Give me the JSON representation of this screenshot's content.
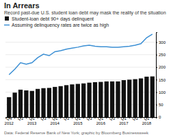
{
  "chart_data": {
    "type": "bar",
    "title": "In Arrears",
    "subtitle": "Record past-due U.S. student loan debt may mask the reality of the situation",
    "footer": "Data: Federal Reserve Bank of New York; graphic by Bloomberg Businessweek",
    "categories": [
      "Q4\n2012",
      null,
      "Q3",
      null,
      "Q1\n2013",
      null,
      "Q3",
      null,
      "Q1\n2014",
      null,
      "Q3",
      null,
      "Q1\n2015",
      null,
      "Q3",
      null,
      "Q1\n2016",
      null,
      "Q3",
      null,
      "Q1\n2017",
      null,
      "Q3",
      null,
      "Q1\n2018",
      null
    ],
    "series": [
      {
        "name": "Student-loan debt 90+ days delinquent",
        "type": "bar",
        "color": "#111111",
        "values": [
          80,
          98,
          110,
          107,
          105,
          113,
          116,
          117,
          121,
          124,
          128,
          131,
          133,
          135,
          138,
          140,
          141,
          143,
          143,
          143,
          148,
          150,
          152,
          155,
          162,
          163
        ]
      },
      {
        "name": "Assuming delinquency rates are twice as high",
        "type": "line",
        "color": "#3b8fd4",
        "values": [
          170,
          192,
          218,
          212,
          218,
          238,
          252,
          246,
          262,
          266,
          272,
          276,
          280,
          285,
          288,
          284,
          282,
          282,
          280,
          280,
          282,
          284,
          288,
          294,
          318,
          332
        ]
      }
    ],
    "ylim": [
      0,
      340
    ],
    "yticks": [
      0,
      50,
      100,
      150,
      200,
      250,
      300
    ],
    "grid": true,
    "legend": "top"
  }
}
